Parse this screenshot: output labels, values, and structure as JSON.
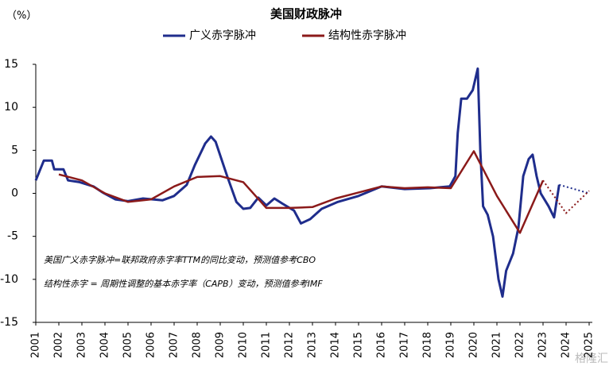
{
  "chart_data": {
    "type": "line",
    "title": "美国财政脉冲",
    "y_unit_label": "（%）",
    "annotations": [
      "美国广义赤字脉冲=联邦政府赤字率TTM的同比变动，预测值参考CBO",
      "结构性赤字 = 周期性调整的基本赤字率（CAPB）变动，预测值参考IMF"
    ],
    "watermark": "格隆汇",
    "xlim": [
      2001,
      2025
    ],
    "xticks": [
      2001,
      2002,
      2003,
      2004,
      2005,
      2006,
      2007,
      2008,
      2009,
      2010,
      2011,
      2012,
      2013,
      2014,
      2015,
      2016,
      2017,
      2018,
      2019,
      2020,
      2021,
      2022,
      2023,
      2024,
      2025
    ],
    "ylim": [
      -15,
      15
    ],
    "yticks": [
      -15,
      -10,
      -5,
      0,
      5,
      10,
      15
    ],
    "grid": false,
    "legend": "top",
    "series": [
      {
        "name": "广义赤字脉冲",
        "color": "#1f2d8c",
        "x": [
          2001.0,
          2001.35,
          2001.7,
          2001.8,
          2002.2,
          2002.4,
          2002.9,
          2003.5,
          2003.9,
          2004.45,
          2005.0,
          2005.65,
          2006.5,
          2007.0,
          2007.55,
          2007.9,
          2008.35,
          2008.6,
          2008.8,
          2009.3,
          2009.7,
          2010.0,
          2010.3,
          2010.65,
          2011.0,
          2011.35,
          2011.7,
          2012.2,
          2012.5,
          2012.9,
          2013.4,
          2014.1,
          2015.0,
          2016.0,
          2017.0,
          2018.1,
          2018.95,
          2019.2,
          2019.3,
          2019.45,
          2019.7,
          2019.95,
          2020.17,
          2020.28,
          2020.4,
          2020.6,
          2020.83,
          2021.07,
          2021.24,
          2021.4,
          2021.7,
          2021.93,
          2022.14,
          2022.38,
          2022.55,
          2022.72,
          2022.9,
          2023.24,
          2023.48,
          2023.7
        ],
        "values": [
          1.5,
          3.8,
          3.8,
          2.8,
          2.8,
          1.5,
          1.3,
          0.8,
          0.1,
          -0.7,
          -0.9,
          -0.6,
          -0.8,
          -0.3,
          1.0,
          3.3,
          5.8,
          6.6,
          6.0,
          2.0,
          -1.0,
          -1.8,
          -1.7,
          -0.5,
          -1.4,
          -0.6,
          -1.2,
          -2.0,
          -3.5,
          -3.0,
          -1.8,
          -1.0,
          -0.3,
          0.8,
          0.5,
          0.6,
          0.8,
          2.0,
          7.0,
          11.0,
          11.0,
          12.0,
          14.5,
          5.0,
          -1.5,
          -2.5,
          -5.0,
          -10.0,
          -12.0,
          -9.0,
          -7.0,
          -4.0,
          2.0,
          4.0,
          4.5,
          2.0,
          0.0,
          -1.5,
          -2.8,
          1.0
        ],
        "forecast_x": [
          2023.7,
          2025.0
        ],
        "forecast_values": [
          1.0,
          0.0
        ]
      },
      {
        "name": "结构性赤字脉冲",
        "color": "#8b1a1a",
        "x": [
          2002,
          2003,
          2004,
          2005,
          2006,
          2007,
          2008,
          2009,
          2010,
          2011,
          2012,
          2013,
          2014,
          2015,
          2016,
          2017,
          2018,
          2019,
          2020,
          2021,
          2022,
          2023
        ],
        "values": [
          2.2,
          1.5,
          0.0,
          -1.0,
          -0.7,
          0.8,
          1.9,
          2.0,
          1.3,
          -1.7,
          -1.7,
          -1.6,
          -0.6,
          0.1,
          0.8,
          0.6,
          0.7,
          0.6,
          4.9,
          -0.3,
          -4.6,
          1.5
        ],
        "forecast_x": [
          2023,
          2024,
          2025
        ],
        "forecast_values": [
          1.5,
          -2.3,
          0.3
        ]
      }
    ]
  }
}
